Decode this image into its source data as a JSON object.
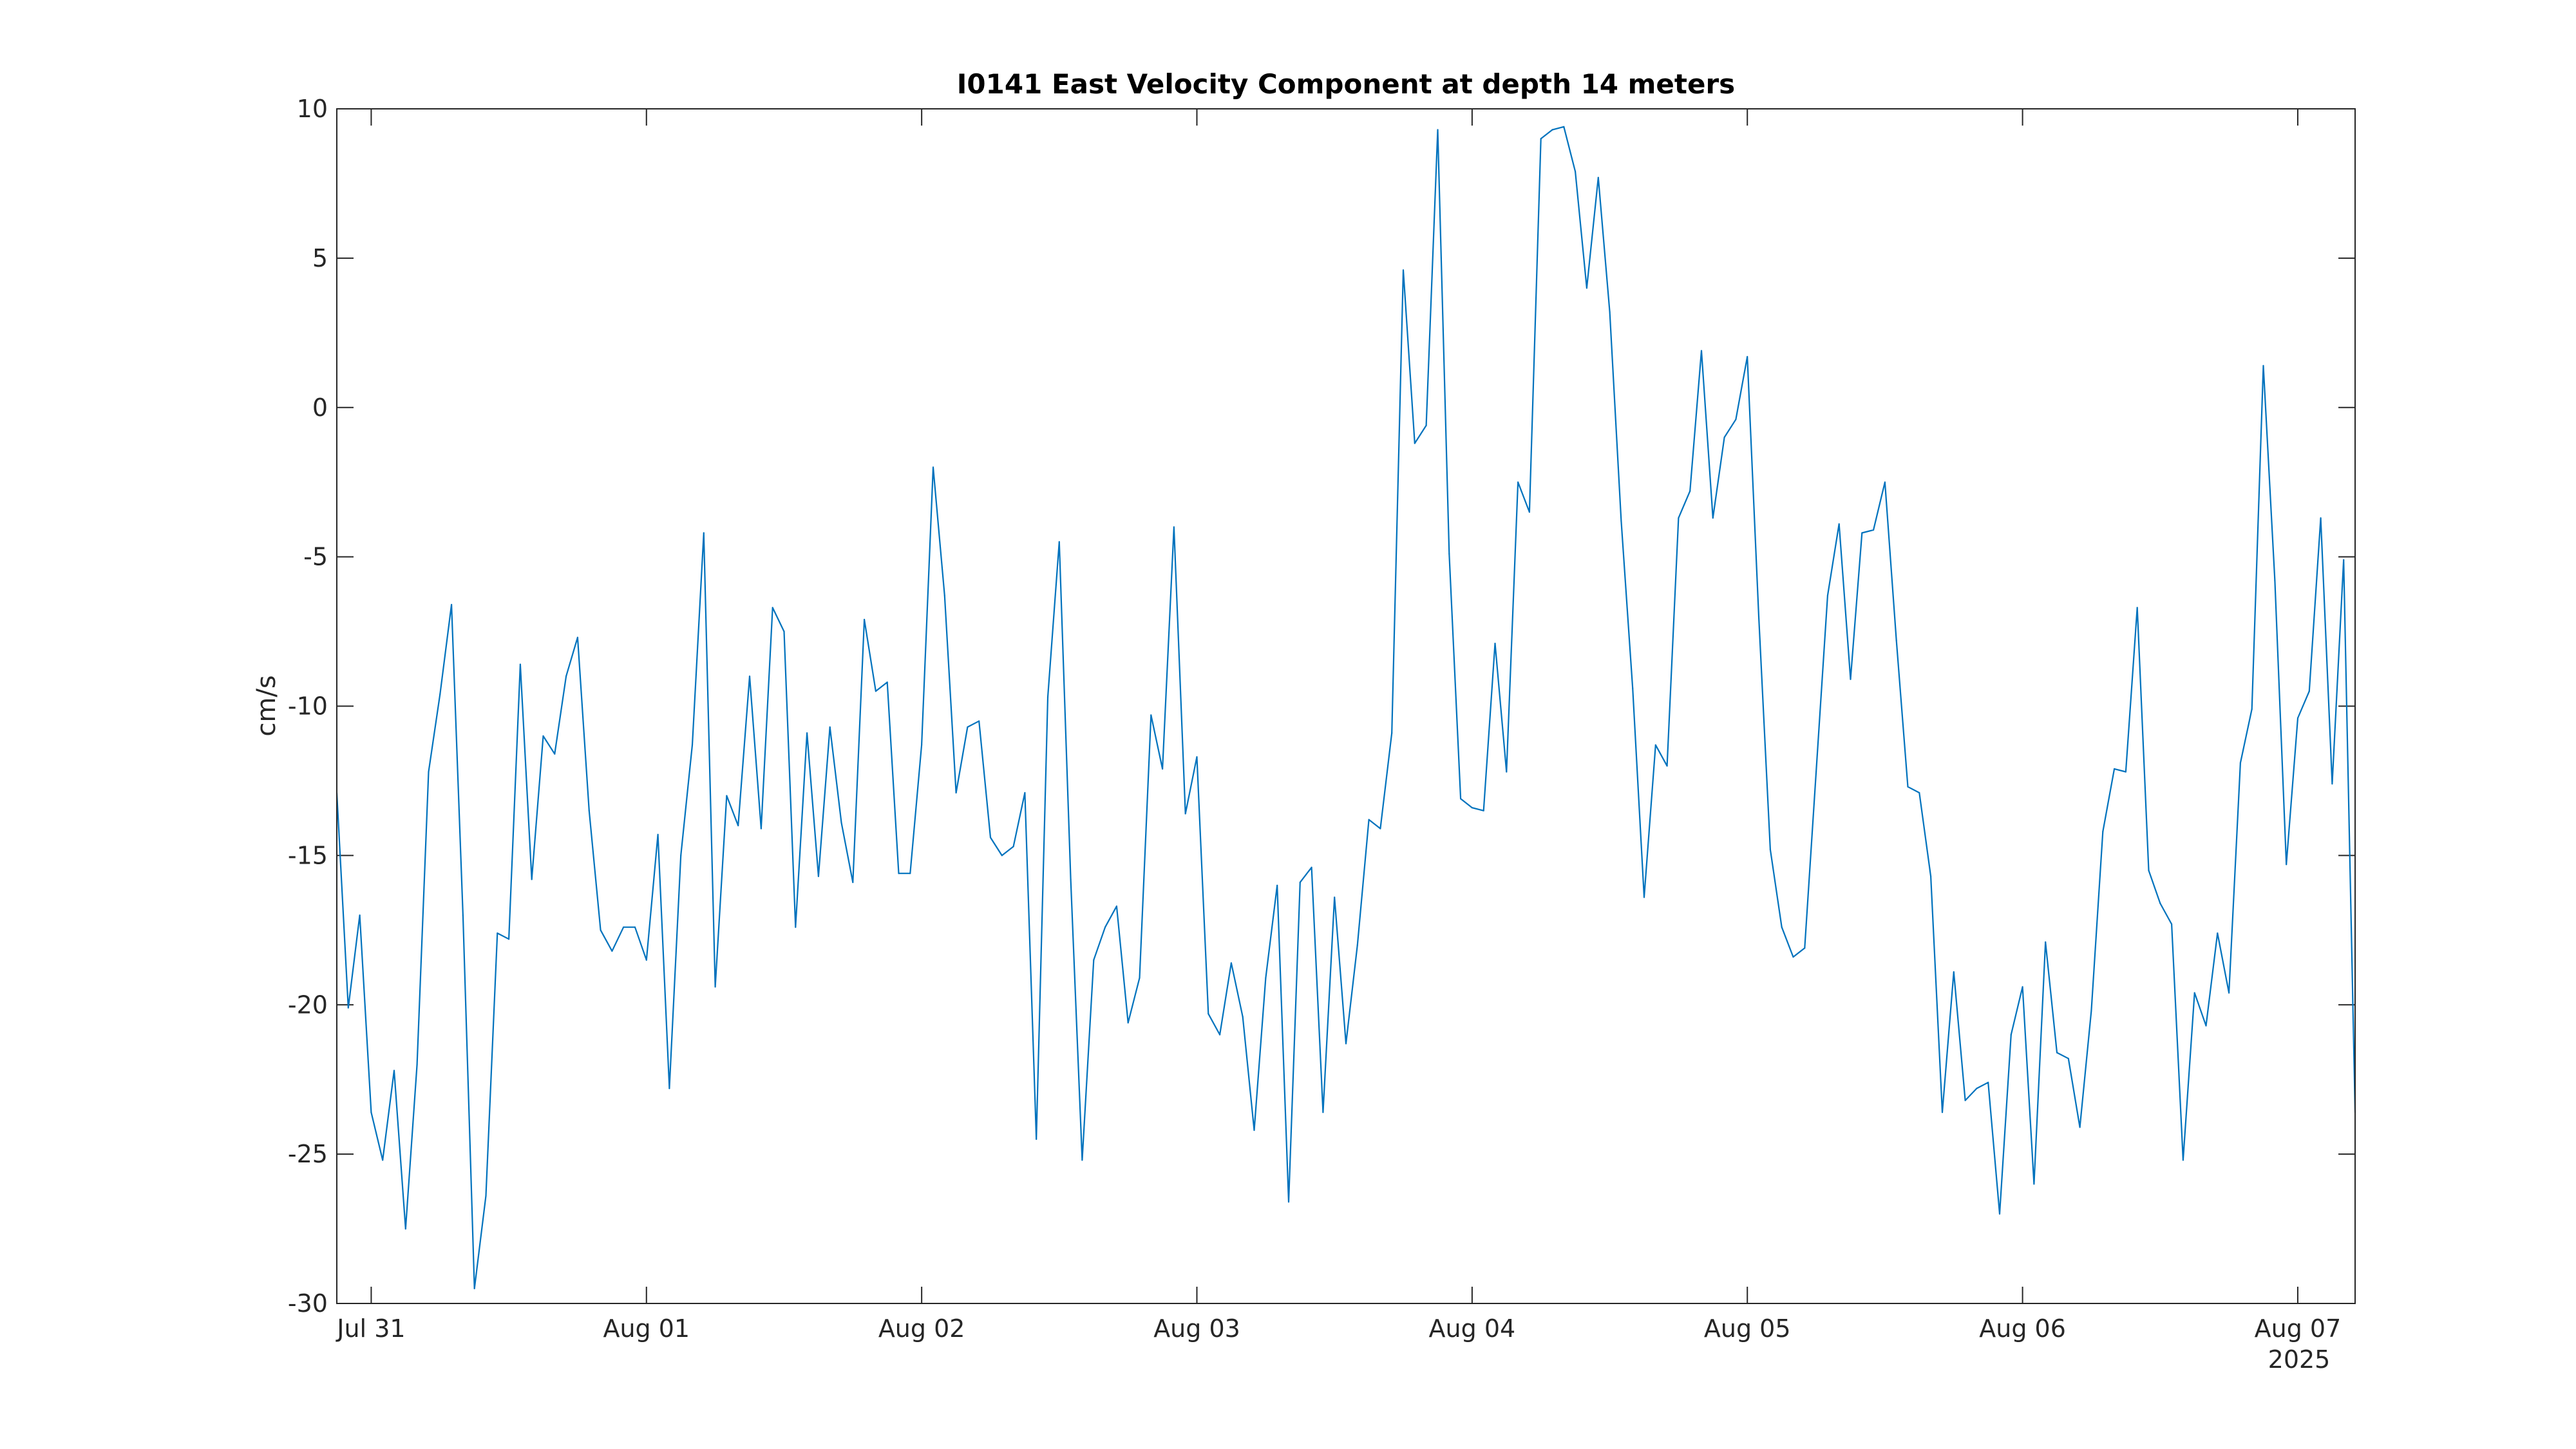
{
  "chart_data": {
    "type": "line",
    "title": "I0141 East Velocity Component at depth 14 meters",
    "xlabel": "",
    "ylabel": "cm/s",
    "x_year_label": "2025",
    "x_start": "2025-07-30T21:00",
    "x_interval_hours": 1,
    "xlim": [
      "2025-07-30T21:00",
      "2025-08-07T05:00"
    ],
    "ylim": [
      -30,
      10
    ],
    "x_ticks": [
      {
        "date": "2025-07-31T00:00",
        "label": "Jul 31"
      },
      {
        "date": "2025-08-01T00:00",
        "label": "Aug 01"
      },
      {
        "date": "2025-08-02T00:00",
        "label": "Aug 02"
      },
      {
        "date": "2025-08-03T00:00",
        "label": "Aug 03"
      },
      {
        "date": "2025-08-04T00:00",
        "label": "Aug 04"
      },
      {
        "date": "2025-08-05T00:00",
        "label": "Aug 05"
      },
      {
        "date": "2025-08-06T00:00",
        "label": "Aug 06"
      },
      {
        "date": "2025-08-07T00:00",
        "label": "Aug 07"
      }
    ],
    "y_ticks": [
      10,
      5,
      0,
      -5,
      -10,
      -15,
      -20,
      -25,
      -30
    ],
    "line_color": "#0072bd",
    "grid": false,
    "box": true,
    "values": [
      -12.9,
      -20.1,
      -17.0,
      -23.6,
      -25.2,
      -22.2,
      -27.5,
      -22.0,
      -12.2,
      -9.6,
      -6.6,
      -17.0,
      -29.5,
      -26.4,
      -17.6,
      -17.8,
      -8.6,
      -15.8,
      -11.0,
      -11.6,
      -9.0,
      -7.7,
      -13.5,
      -17.5,
      -18.2,
      -17.4,
      -17.4,
      -18.5,
      -14.3,
      -22.8,
      -15.0,
      -11.3,
      -4.2,
      -19.4,
      -13.0,
      -14.0,
      -9.0,
      -14.1,
      -6.7,
      -7.5,
      -17.4,
      -10.9,
      -15.7,
      -10.7,
      -13.9,
      -15.9,
      -7.1,
      -9.5,
      -9.2,
      -15.6,
      -15.6,
      -11.3,
      -2.0,
      -6.3,
      -12.9,
      -10.7,
      -10.5,
      -14.4,
      -15.0,
      -14.7,
      -12.9,
      -24.5,
      -9.7,
      -4.5,
      -15.8,
      -25.2,
      -18.5,
      -17.4,
      -16.7,
      -20.6,
      -19.1,
      -10.3,
      -12.1,
      -4.0,
      -13.6,
      -11.7,
      -20.3,
      -21.0,
      -18.6,
      -20.4,
      -24.2,
      -19.1,
      -16.0,
      -26.6,
      -15.9,
      -15.4,
      -23.6,
      -16.4,
      -21.3,
      -18.0,
      -13.8,
      -14.1,
      -10.9,
      4.6,
      -1.2,
      -0.6,
      9.3,
      -4.9,
      -13.1,
      -13.4,
      -13.5,
      -7.9,
      -12.2,
      -2.5,
      -3.5,
      9.0,
      9.3,
      9.4,
      7.9,
      4.0,
      7.7,
      3.2,
      -3.8,
      -9.4,
      -16.4,
      -11.3,
      -12.0,
      -3.7,
      -2.8,
      1.9,
      -3.7,
      -1.0,
      -0.4,
      1.7,
      -7.0,
      -14.8,
      -17.4,
      -18.4,
      -18.1,
      -12.2,
      -6.3,
      -3.9,
      -9.1,
      -4.2,
      -4.1,
      -2.5,
      -7.8,
      -12.7,
      -12.9,
      -15.7,
      -23.6,
      -18.9,
      -23.2,
      -22.8,
      -22.6,
      -27.0,
      -21.0,
      -19.4,
      -26.0,
      -17.9,
      -21.6,
      -21.8,
      -24.1,
      -20.2,
      -14.2,
      -12.1,
      -12.2,
      -6.7,
      -15.5,
      -16.6,
      -17.3,
      -25.2,
      -19.6,
      -20.7,
      -17.6,
      -19.6,
      -11.9,
      -10.1,
      1.4,
      -5.8,
      -15.3,
      -10.4,
      -9.5,
      -3.7,
      -12.6,
      -5.1,
      -23.6
    ]
  }
}
